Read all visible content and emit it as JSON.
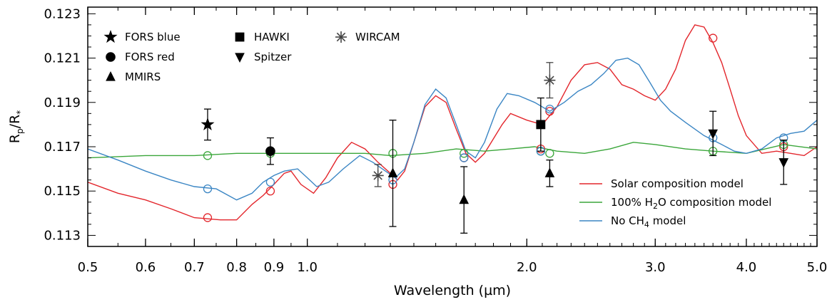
{
  "chart_data": {
    "type": "line",
    "xlabel": "Wavelength (µm)",
    "ylabel": "Rp/R*",
    "xscale": "log",
    "xlim": [
      0.5,
      5.0
    ],
    "ylim": [
      0.1125,
      0.1233
    ],
    "x_ticks": [
      0.5,
      0.6,
      0.7,
      0.8,
      0.9,
      1.0,
      2.0,
      3.0,
      4.0,
      5.0
    ],
    "x_tick_labels": [
      "0.5",
      "0.6",
      "0.7",
      "0.8",
      "0.9",
      "1.0",
      "2.0",
      "3.0",
      "4.0",
      "5.0"
    ],
    "y_ticks": [
      0.113,
      0.115,
      0.117,
      0.119,
      0.121,
      0.123
    ],
    "y_tick_labels": [
      "0.113",
      "0.115",
      "0.117",
      "0.119",
      "0.121",
      "0.123"
    ],
    "legend_placement": "bottom-right",
    "series": [
      {
        "name": "Solar composition model",
        "label_html": "Solar composition model",
        "color": "#e3262c",
        "points": [
          [
            0.5,
            0.1154
          ],
          [
            0.55,
            0.1149
          ],
          [
            0.6,
            0.1146
          ],
          [
            0.65,
            0.1142
          ],
          [
            0.7,
            0.1138
          ],
          [
            0.76,
            0.1137
          ],
          [
            0.8,
            0.1137
          ],
          [
            0.84,
            0.1144
          ],
          [
            0.87,
            0.1148
          ],
          [
            0.9,
            0.1153
          ],
          [
            0.93,
            0.1158
          ],
          [
            0.95,
            0.1159
          ],
          [
            0.98,
            0.1153
          ],
          [
            1.02,
            0.1149
          ],
          [
            1.06,
            0.1156
          ],
          [
            1.1,
            0.1165
          ],
          [
            1.15,
            0.1172
          ],
          [
            1.2,
            0.1169
          ],
          [
            1.25,
            0.1163
          ],
          [
            1.3,
            0.1158
          ],
          [
            1.33,
            0.1155
          ],
          [
            1.36,
            0.1159
          ],
          [
            1.4,
            0.1172
          ],
          [
            1.45,
            0.1188
          ],
          [
            1.5,
            0.1193
          ],
          [
            1.55,
            0.119
          ],
          [
            1.6,
            0.1178
          ],
          [
            1.65,
            0.1167
          ],
          [
            1.7,
            0.1163
          ],
          [
            1.75,
            0.1167
          ],
          [
            1.85,
            0.118
          ],
          [
            1.9,
            0.1185
          ],
          [
            2.0,
            0.1182
          ],
          [
            2.1,
            0.118
          ],
          [
            2.2,
            0.1188
          ],
          [
            2.3,
            0.12
          ],
          [
            2.4,
            0.1207
          ],
          [
            2.5,
            0.1208
          ],
          [
            2.6,
            0.1205
          ],
          [
            2.7,
            0.1198
          ],
          [
            2.8,
            0.1196
          ],
          [
            2.9,
            0.1193
          ],
          [
            3.0,
            0.1191
          ],
          [
            3.1,
            0.1196
          ],
          [
            3.2,
            0.1205
          ],
          [
            3.3,
            0.1218
          ],
          [
            3.4,
            0.1225
          ],
          [
            3.5,
            0.1224
          ],
          [
            3.6,
            0.1217
          ],
          [
            3.7,
            0.1208
          ],
          [
            3.8,
            0.1196
          ],
          [
            3.9,
            0.1184
          ],
          [
            4.0,
            0.1175
          ],
          [
            4.2,
            0.1167
          ],
          [
            4.4,
            0.1168
          ],
          [
            4.6,
            0.1167
          ],
          [
            4.8,
            0.1166
          ],
          [
            5.0,
            0.117
          ]
        ]
      },
      {
        "name": "100% H2O composition model",
        "label_html": "100% H<tspan font-size=\"11\" dy=\"4\">2</tspan><tspan dy=\"-4\">O composition model</tspan>",
        "color": "#3aa63a",
        "points": [
          [
            0.5,
            0.1165
          ],
          [
            0.6,
            0.1166
          ],
          [
            0.7,
            0.1166
          ],
          [
            0.8,
            0.1167
          ],
          [
            0.9,
            0.1167
          ],
          [
            1.0,
            0.1167
          ],
          [
            1.1,
            0.1167
          ],
          [
            1.2,
            0.1167
          ],
          [
            1.3,
            0.1166
          ],
          [
            1.45,
            0.1167
          ],
          [
            1.6,
            0.1169
          ],
          [
            1.75,
            0.1168
          ],
          [
            1.9,
            0.1169
          ],
          [
            2.05,
            0.117
          ],
          [
            2.2,
            0.1168
          ],
          [
            2.4,
            0.1167
          ],
          [
            2.6,
            0.1169
          ],
          [
            2.8,
            0.1172
          ],
          [
            3.0,
            0.1171
          ],
          [
            3.3,
            0.1169
          ],
          [
            3.6,
            0.1168
          ],
          [
            4.0,
            0.1167
          ],
          [
            4.5,
            0.1171
          ],
          [
            5.0,
            0.1169
          ]
        ]
      },
      {
        "name": "No CH4 model",
        "label_html": "No CH<tspan font-size=\"11\" dy=\"4\">4</tspan><tspan dy=\"-4\"> model</tspan>",
        "color": "#3b86c4",
        "points": [
          [
            0.5,
            0.1169
          ],
          [
            0.55,
            0.1164
          ],
          [
            0.6,
            0.1159
          ],
          [
            0.65,
            0.1155
          ],
          [
            0.7,
            0.1152
          ],
          [
            0.75,
            0.1151
          ],
          [
            0.8,
            0.1146
          ],
          [
            0.84,
            0.1149
          ],
          [
            0.87,
            0.1154
          ],
          [
            0.9,
            0.1157
          ],
          [
            0.93,
            0.1159
          ],
          [
            0.97,
            0.116
          ],
          [
            1.0,
            0.1156
          ],
          [
            1.03,
            0.1152
          ],
          [
            1.07,
            0.1154
          ],
          [
            1.12,
            0.116
          ],
          [
            1.18,
            0.1166
          ],
          [
            1.23,
            0.1163
          ],
          [
            1.28,
            0.1159
          ],
          [
            1.32,
            0.1156
          ],
          [
            1.36,
            0.116
          ],
          [
            1.4,
            0.1172
          ],
          [
            1.45,
            0.1189
          ],
          [
            1.5,
            0.1196
          ],
          [
            1.55,
            0.1192
          ],
          [
            1.6,
            0.118
          ],
          [
            1.65,
            0.1168
          ],
          [
            1.7,
            0.1165
          ],
          [
            1.75,
            0.1172
          ],
          [
            1.82,
            0.1187
          ],
          [
            1.88,
            0.1194
          ],
          [
            1.95,
            0.1193
          ],
          [
            2.05,
            0.119
          ],
          [
            2.15,
            0.1186
          ],
          [
            2.25,
            0.119
          ],
          [
            2.35,
            0.1195
          ],
          [
            2.45,
            0.1198
          ],
          [
            2.55,
            0.1203
          ],
          [
            2.65,
            0.1209
          ],
          [
            2.75,
            0.121
          ],
          [
            2.85,
            0.1207
          ],
          [
            2.95,
            0.1199
          ],
          [
            3.05,
            0.1191
          ],
          [
            3.15,
            0.1186
          ],
          [
            3.3,
            0.1181
          ],
          [
            3.5,
            0.1175
          ],
          [
            3.7,
            0.1171
          ],
          [
            3.85,
            0.1168
          ],
          [
            4.0,
            0.1167
          ],
          [
            4.2,
            0.1169
          ],
          [
            4.4,
            0.1174
          ],
          [
            4.6,
            0.1176
          ],
          [
            4.8,
            0.1177
          ],
          [
            5.0,
            0.1182
          ]
        ]
      }
    ],
    "binned_models": [
      {
        "color": "#e3262c",
        "points": [
          [
            0.73,
            0.1138
          ],
          [
            0.89,
            0.115
          ],
          [
            1.31,
            0.1153
          ],
          [
            1.64,
            0.1165
          ],
          [
            2.09,
            0.1169
          ],
          [
            2.15,
            0.1186
          ],
          [
            3.6,
            0.1219
          ],
          [
            4.5,
            0.117
          ]
        ]
      },
      {
        "color": "#3aa63a",
        "points": [
          [
            0.73,
            0.1166
          ],
          [
            0.89,
            0.1167
          ],
          [
            1.31,
            0.1167
          ],
          [
            1.64,
            0.1167
          ],
          [
            2.09,
            0.1168
          ],
          [
            2.15,
            0.1167
          ],
          [
            3.6,
            0.1168
          ],
          [
            4.5,
            0.1171
          ]
        ]
      },
      {
        "color": "#3b86c4",
        "points": [
          [
            0.73,
            0.1151
          ],
          [
            0.89,
            0.1154
          ],
          [
            1.31,
            0.1155
          ],
          [
            1.64,
            0.1165
          ],
          [
            2.09,
            0.1168
          ],
          [
            2.15,
            0.1187
          ],
          [
            3.6,
            0.1174
          ],
          [
            4.5,
            0.1174
          ]
        ]
      }
    ],
    "observations": [
      {
        "instrument": "FORS blue",
        "marker": "star",
        "x": 0.73,
        "y": 0.118,
        "yerr": 0.0007
      },
      {
        "instrument": "FORS red",
        "marker": "circle",
        "x": 0.89,
        "y": 0.1168,
        "yerr": 0.0006
      },
      {
        "instrument": "MMIRS",
        "marker": "triangle-up",
        "x": 1.31,
        "y": 0.1158,
        "yerr": 0.0024
      },
      {
        "instrument": "MMIRS",
        "marker": "triangle-up",
        "x": 1.64,
        "y": 0.1146,
        "yerr": 0.0015
      },
      {
        "instrument": "HAWKI",
        "marker": "square",
        "x": 2.09,
        "y": 0.118,
        "yerr": 0.0012
      },
      {
        "instrument": "MMIRS",
        "marker": "triangle-up",
        "x": 2.15,
        "y": 0.1158,
        "yerr": 0.0006
      },
      {
        "instrument": "WIRCAM",
        "marker": "asterisk",
        "x": 1.25,
        "y": 0.1157,
        "yerr": 0.0005
      },
      {
        "instrument": "WIRCAM",
        "marker": "asterisk",
        "x": 2.15,
        "y": 0.12,
        "yerr": 0.0008
      },
      {
        "instrument": "Spitzer",
        "marker": "triangle-down",
        "x": 3.6,
        "y": 0.1176,
        "yerr": 0.001
      },
      {
        "instrument": "Spitzer",
        "marker": "triangle-down",
        "x": 4.5,
        "y": 0.1163,
        "yerr": 0.001
      }
    ],
    "marker_legend": [
      {
        "label": "FORS blue",
        "marker": "star"
      },
      {
        "label": "FORS red",
        "marker": "circle"
      },
      {
        "label": "MMIRS",
        "marker": "triangle-up"
      },
      {
        "label": "HAWKI",
        "marker": "square"
      },
      {
        "label": "Spitzer",
        "marker": "triangle-down"
      },
      {
        "label": "WIRCAM",
        "marker": "asterisk"
      }
    ]
  }
}
